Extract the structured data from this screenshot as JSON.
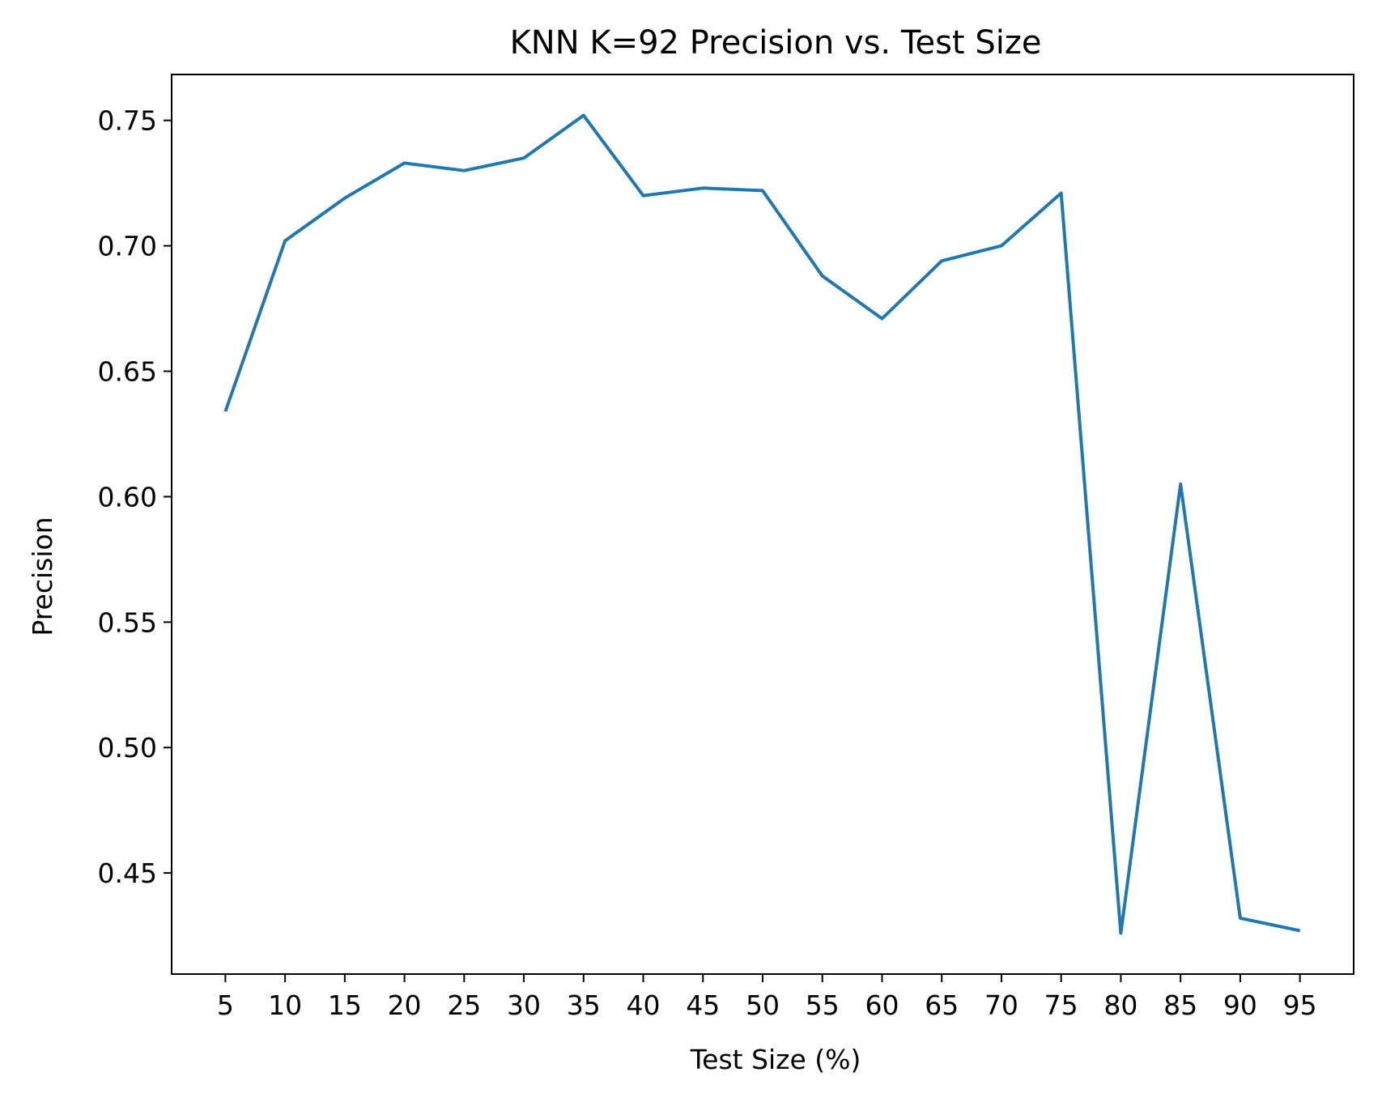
{
  "chart_data": {
    "type": "line",
    "title": "KNN K=92  Precision vs. Test Size",
    "xlabel": "Test Size (%)",
    "ylabel": "Precision",
    "x": [
      5,
      10,
      15,
      20,
      25,
      30,
      35,
      40,
      45,
      50,
      55,
      60,
      65,
      70,
      75,
      80,
      85,
      90,
      95
    ],
    "series": [
      {
        "values": [
          0.634,
          0.702,
          0.719,
          0.733,
          0.73,
          0.735,
          0.752,
          0.72,
          0.723,
          0.722,
          0.688,
          0.671,
          0.694,
          0.7,
          0.721,
          0.426,
          0.605,
          0.432,
          0.427
        ],
        "color": "#1f77b4"
      }
    ],
    "xticks": [
      "5",
      "10",
      "15",
      "20",
      "25",
      "30",
      "35",
      "40",
      "45",
      "50",
      "55",
      "60",
      "65",
      "70",
      "75",
      "80",
      "85",
      "90",
      "95"
    ],
    "yticks": [
      "0.45",
      "0.50",
      "0.55",
      "0.60",
      "0.65",
      "0.70",
      "0.75"
    ],
    "xlim": [
      0.5,
      99.5
    ],
    "ylim": [
      0.4097,
      0.7683
    ],
    "grid": false,
    "legend": "none"
  }
}
